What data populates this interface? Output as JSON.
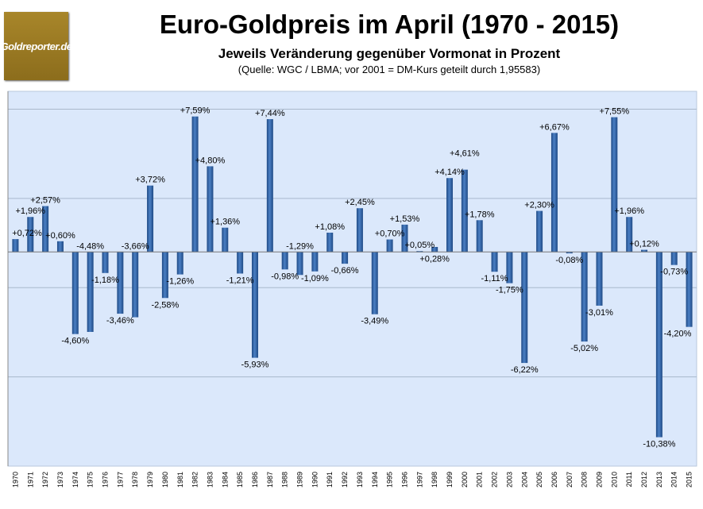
{
  "logo_text": "Goldreporter.de",
  "chart_data": {
    "type": "bar",
    "title": "Euro-Goldpreis im April (1970 - 2015)",
    "subtitle": "Jeweils Veränderung gegenüber Vormonat in Prozent",
    "source": "(Quelle: WGC / LBMA; vor 2001 = DM-Kurs geteilt durch 1,95583)",
    "xlabel": "",
    "ylabel": "",
    "ylim": [
      -12,
      9
    ],
    "gridlines": [
      8,
      3,
      -2,
      -7
    ],
    "grid": true,
    "bar_color": "#2f5fa0",
    "plot_bg": "#dbe8fb",
    "categories": [
      "1970",
      "1971",
      "1972",
      "1973",
      "1974",
      "1975",
      "1976",
      "1977",
      "1978",
      "1979",
      "1980",
      "1981",
      "1982",
      "1983",
      "1984",
      "1985",
      "1986",
      "1987",
      "1988",
      "1989",
      "1990",
      "1991",
      "1992",
      "1993",
      "1994",
      "1995",
      "1996",
      "1997",
      "1998",
      "1999",
      "2000",
      "2001",
      "2002",
      "2003",
      "2004",
      "2005",
      "2006",
      "2007",
      "2008",
      "2009",
      "2010",
      "2011",
      "2012",
      "2013",
      "2014",
      "2015"
    ],
    "values": [
      0.72,
      1.96,
      2.57,
      0.6,
      -4.6,
      -4.48,
      -1.18,
      -3.46,
      -3.66,
      3.72,
      -2.58,
      -1.26,
      7.59,
      4.8,
      1.36,
      -1.21,
      -5.93,
      7.44,
      -0.98,
      -1.29,
      -1.09,
      1.08,
      -0.66,
      2.45,
      -3.49,
      0.7,
      1.53,
      0.05,
      0.28,
      4.14,
      4.61,
      1.78,
      -1.11,
      -1.75,
      -6.22,
      2.3,
      6.67,
      -0.08,
      -5.02,
      -3.01,
      7.55,
      1.96,
      0.12,
      -10.38,
      -0.73,
      -4.2
    ],
    "data_labels": [
      "+0,72%",
      "+1,96%",
      "+2,57%",
      "+0,60%",
      "-4,60%",
      "-4,48%",
      "-1,18%",
      "-3,46%",
      "-3,66%",
      "+3,72%",
      "-2,58%",
      "-1,26%",
      "+7,59%",
      "+4,80%",
      "+1,36%",
      "-1,21%",
      "-5,93%",
      "+7,44%",
      "-0,98%",
      "-1,29%",
      "-1,09%",
      "+1,08%",
      "-0,66%",
      "+2,45%",
      "-3,49%",
      "+0,70%",
      "+1,53%",
      "+0,05%",
      "+0,28%",
      "+4,14%",
      "+4,61%",
      "+1,78%",
      "-1,11%",
      "-1,75%",
      "-6,22%",
      "+2,30%",
      "+6,67%",
      "-0,08%",
      "-5,02%",
      "-3,01%",
      "+7,55%",
      "+1,96%",
      "+0,12%",
      "-10,38%",
      "-0,73%",
      "-4,20%"
    ]
  }
}
